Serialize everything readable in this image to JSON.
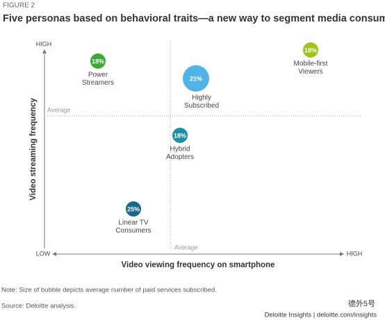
{
  "header": {
    "figure_label": "FIGURE 2",
    "title": "Five personas based on behavioral traits—a new way to segment media consumers"
  },
  "axes": {
    "y_title": "Video streaming frequency",
    "x_title": "Video viewing frequency on smartphone",
    "y_high": "HIGH",
    "y_low": "LOW",
    "x_high": "HIGH",
    "y_average": "Average",
    "x_average": "Average"
  },
  "nodes": [
    {
      "value": "18%",
      "lines": [
        "Power",
        "Streamers"
      ],
      "color": "#3aaa35"
    },
    {
      "value": "21%",
      "lines": [
        "Highly",
        "Subscribed"
      ],
      "color": "#4fb3e8"
    },
    {
      "value": "18%",
      "lines": [
        "Mobile-first",
        "Viewers"
      ],
      "color": "#9fc419"
    },
    {
      "value": "18%",
      "lines": [
        "Hybrid",
        "Adopters"
      ],
      "color": "#1f8fa6"
    },
    {
      "value": "25%",
      "lines": [
        "Linear TV",
        "Consumers"
      ],
      "color": "#17698a"
    }
  ],
  "notes": [
    "Note: Size of bubble depicts average number of paid services subscribed.",
    "Source: Deloitte analysis."
  ],
  "footer": {
    "credit": "Deloitte Insights | deloitte.com/insights",
    "watermark": "德外5号"
  }
}
